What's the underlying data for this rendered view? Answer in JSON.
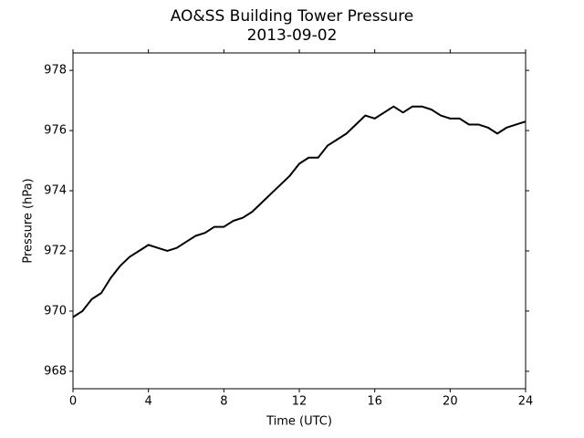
{
  "chart_data": {
    "type": "line",
    "title": "AO&SS Building Tower Pressure",
    "subtitle": "2013-09-02",
    "x_label": "Time (UTC)",
    "y_label": "Pressure (hPa)",
    "x": [
      0,
      0.5,
      1,
      1.5,
      2,
      2.5,
      3,
      3.5,
      4,
      4.5,
      5,
      5.5,
      6,
      6.5,
      7,
      7.5,
      8,
      8.5,
      9,
      9.5,
      10,
      10.5,
      11,
      11.5,
      12,
      12.5,
      13,
      13.5,
      14,
      14.5,
      15,
      15.5,
      16,
      16.5,
      17,
      17.5,
      18,
      18.5,
      19,
      19.5,
      20,
      20.5,
      21,
      21.5,
      22,
      22.5,
      23,
      23.5,
      24
    ],
    "series": [
      {
        "color": "#000000",
        "values": [
          969.8,
          970.0,
          970.4,
          970.6,
          971.1,
          971.5,
          971.8,
          972.0,
          972.2,
          972.1,
          972.0,
          972.1,
          972.3,
          972.5,
          972.6,
          972.8,
          972.8,
          973.0,
          973.1,
          973.3,
          973.6,
          973.9,
          974.2,
          974.5,
          974.9,
          975.1,
          975.1,
          975.5,
          975.7,
          975.9,
          976.2,
          976.5,
          976.4,
          976.6,
          976.8,
          976.6,
          976.8,
          976.8,
          976.7,
          976.5,
          976.4,
          976.4,
          976.2,
          976.2,
          976.1,
          975.9,
          976.1,
          976.2,
          976.3
        ]
      }
    ],
    "xlim": [
      0,
      24
    ],
    "xticks": [
      0,
      4,
      8,
      12,
      16,
      20,
      24
    ],
    "ylim": [
      967.42,
      978.58
    ],
    "yticks": [
      968,
      970,
      972,
      974,
      976,
      978
    ],
    "grid": false
  }
}
